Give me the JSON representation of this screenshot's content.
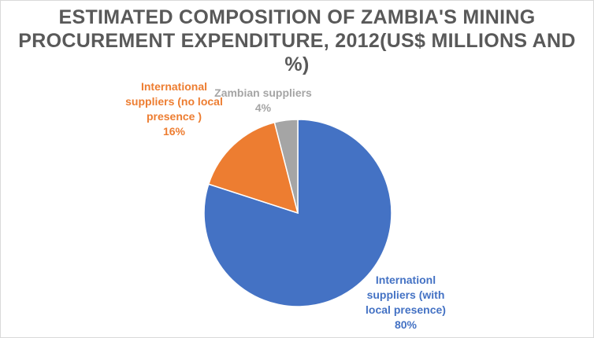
{
  "chart_data": {
    "type": "pie",
    "title": "ESTIMATED COMPOSITION OF ZAMBIA'S MINING PROCUREMENT EXPENDITURE, 2012(US$ MILLIONS AND %)",
    "slices": [
      {
        "name": "Internationl suppliers (with local presence)",
        "value": 80,
        "label": "80%",
        "color": "#4472c4"
      },
      {
        "name": "International suppliers (no local presence )",
        "value": 16,
        "label": "16%",
        "color": "#ed7d31"
      },
      {
        "name": "Zambian suppliers",
        "value": 4,
        "label": "4%",
        "color": "#a5a5a5"
      }
    ],
    "start_angle_deg": 0,
    "direction": "clockwise",
    "legend": "none"
  },
  "labels": {
    "intl_local": {
      "lines": [
        "Internationl",
        "suppliers (with",
        "local presence)"
      ],
      "pct": "80%"
    },
    "intl_nolocal": {
      "lines": [
        "International",
        "suppliers (no local",
        "presence )"
      ],
      "pct": "16%"
    },
    "zambian": {
      "lines": [
        "Zambian suppliers"
      ],
      "pct": "4%"
    }
  }
}
